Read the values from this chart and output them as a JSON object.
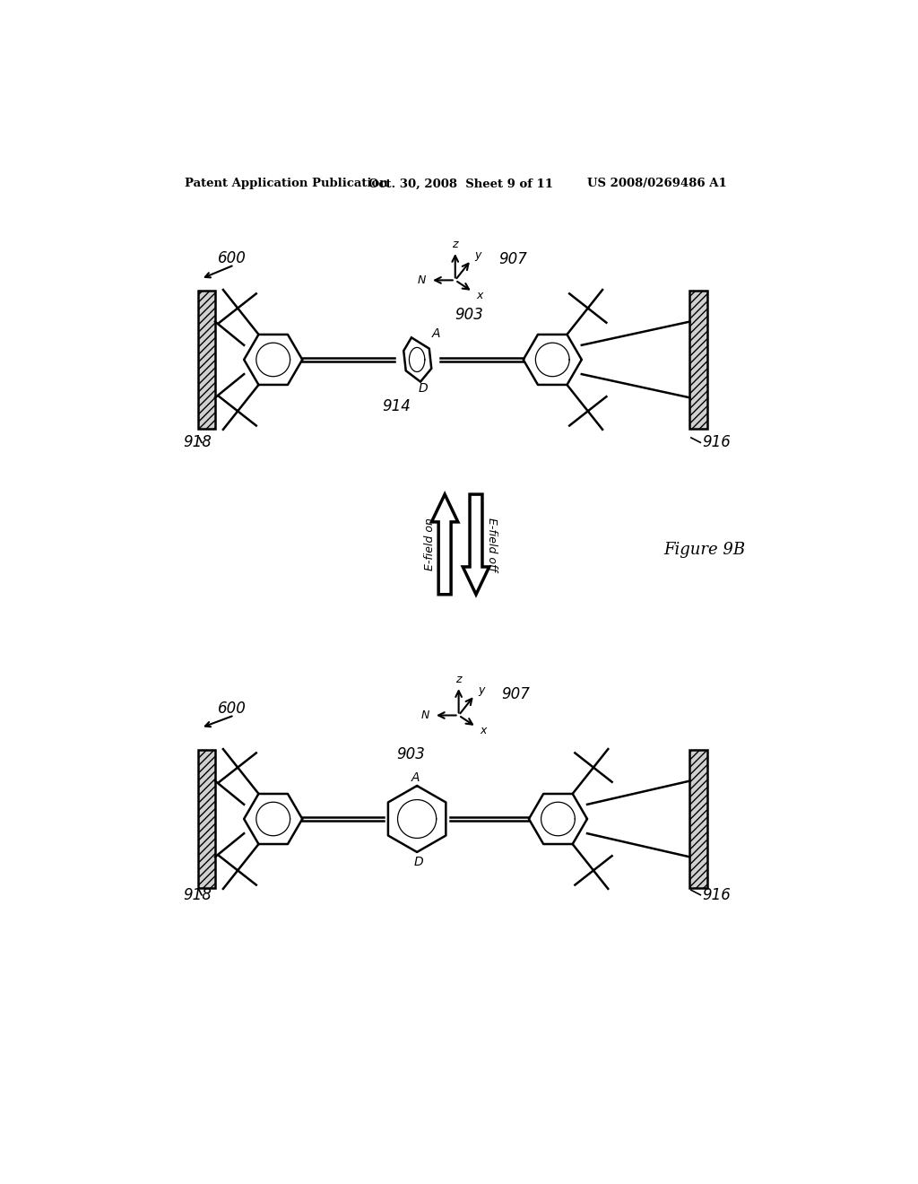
{
  "bg_color": "#ffffff",
  "header_left": "Patent Application Publication",
  "header_mid": "Oct. 30, 2008  Sheet 9 of 11",
  "header_right": "US 2008/0269486 A1",
  "figure_label": "Figure 9B"
}
